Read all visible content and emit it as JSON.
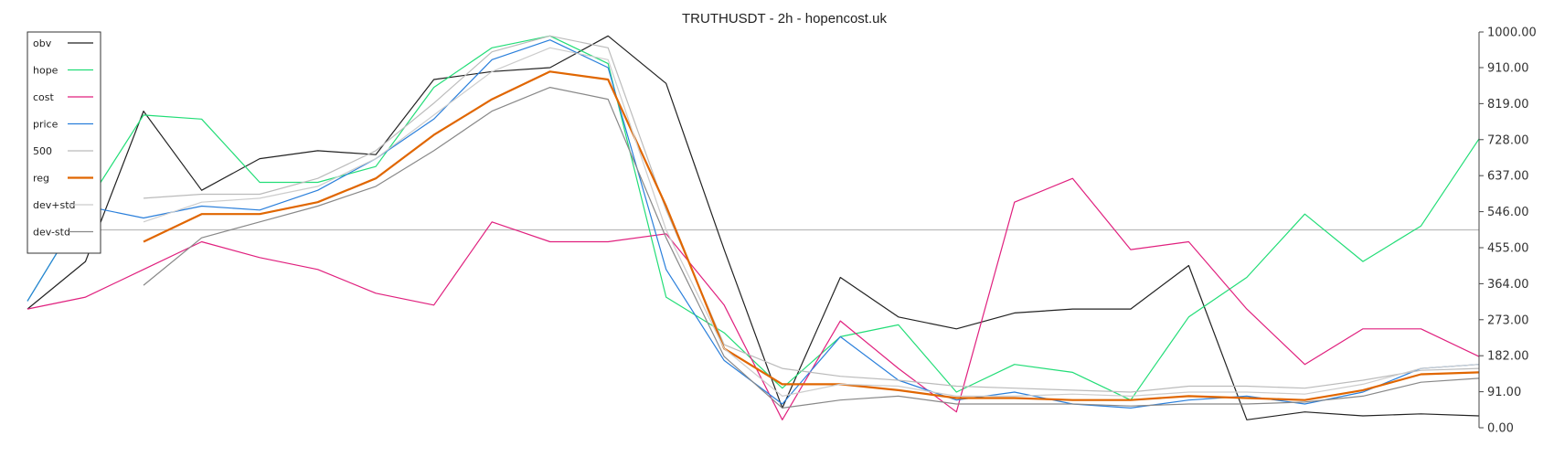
{
  "chart_data": {
    "type": "line",
    "title": "TRUTHUSDT - 2h - hopencost.uk",
    "xlabel": "",
    "ylabel": "",
    "ylim": [
      0,
      1000
    ],
    "y_ticks": [
      "0.00",
      "91.00",
      "182.00",
      "273.00",
      "364.00",
      "455.00",
      "546.00",
      "637.00",
      "728.00",
      "819.00",
      "910.00",
      "1000.00"
    ],
    "grid": false,
    "legend_position": "top-left",
    "reference_line": 500,
    "reference_color": "#bbbbbb",
    "x": [
      0,
      4,
      8,
      12,
      16,
      20,
      24,
      28,
      32,
      36,
      40,
      44,
      48,
      52,
      56,
      60,
      64,
      68,
      72,
      76,
      80,
      84,
      88,
      92,
      96,
      100
    ],
    "series": [
      {
        "name": "obv",
        "color": "#222222",
        "width": 1.2,
        "values": [
          300,
          420,
          800,
          600,
          680,
          700,
          690,
          880,
          900,
          910,
          990,
          870,
          450,
          50,
          380,
          280,
          250,
          290,
          300,
          300,
          410,
          20,
          40,
          30,
          35,
          30
        ]
      },
      {
        "name": "hope",
        "color": "#22dd77",
        "width": 1.2,
        "values": [
          320,
          560,
          790,
          780,
          620,
          620,
          660,
          860,
          960,
          990,
          920,
          330,
          240,
          100,
          230,
          260,
          90,
          160,
          140,
          70,
          280,
          380,
          540,
          420,
          510,
          730
        ]
      },
      {
        "name": "cost",
        "color": "#e0207e",
        "width": 1.2,
        "values": [
          300,
          330,
          400,
          470,
          430,
          400,
          340,
          310,
          520,
          470,
          470,
          490,
          310,
          20,
          270,
          150,
          40,
          570,
          630,
          450,
          470,
          300,
          160,
          250,
          250,
          180
        ]
      },
      {
        "name": "price",
        "color": "#2a7fdb",
        "width": 1.2,
        "values": [
          320,
          560,
          530,
          560,
          550,
          600,
          680,
          780,
          930,
          980,
          910,
          400,
          170,
          60,
          230,
          120,
          70,
          90,
          60,
          50,
          70,
          80,
          60,
          90,
          150,
          160
        ]
      },
      {
        "name": "500",
        "color": "#bbbbbb",
        "width": 1.2,
        "values": [
          null,
          null,
          580,
          590,
          590,
          630,
          700,
          820,
          950,
          990,
          960,
          550,
          210,
          150,
          130,
          120,
          105,
          100,
          95,
          90,
          105,
          105,
          100,
          120,
          145,
          150
        ]
      },
      {
        "name": "reg",
        "color": "#e06600",
        "width": 2.2,
        "values": [
          null,
          null,
          470,
          540,
          540,
          570,
          630,
          740,
          830,
          900,
          880,
          560,
          200,
          110,
          110,
          95,
          75,
          75,
          70,
          70,
          80,
          75,
          70,
          95,
          135,
          140
        ]
      },
      {
        "name": "dev+std",
        "color": "#cccccc",
        "width": 1.2,
        "values": [
          null,
          null,
          520,
          570,
          580,
          610,
          680,
          790,
          900,
          960,
          930,
          500,
          200,
          80,
          110,
          105,
          80,
          80,
          85,
          80,
          90,
          90,
          85,
          110,
          150,
          160
        ]
      },
      {
        "name": "dev-std",
        "color": "#888888",
        "width": 1.2,
        "values": [
          null,
          null,
          360,
          480,
          520,
          560,
          610,
          700,
          800,
          860,
          830,
          480,
          180,
          50,
          70,
          80,
          60,
          60,
          60,
          55,
          60,
          60,
          65,
          80,
          115,
          125
        ]
      }
    ]
  }
}
